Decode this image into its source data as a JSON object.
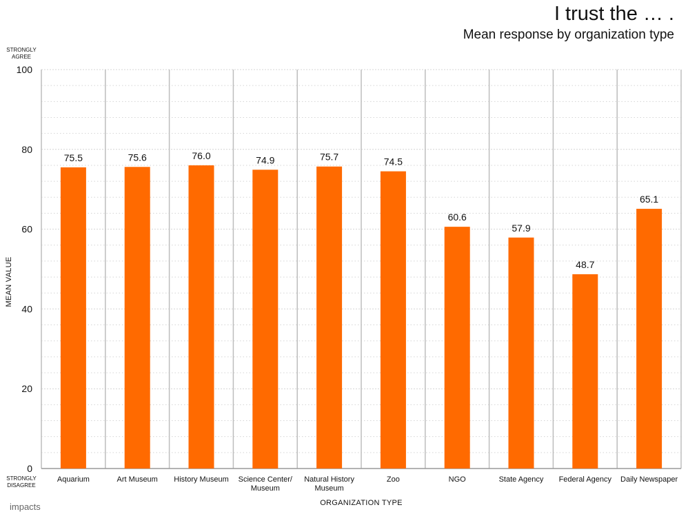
{
  "header": {
    "title": "I trust the … .",
    "subtitle": "Mean response by organization type"
  },
  "scale_anchors": {
    "top": "STRONGLY AGREE",
    "bottom": "STRONGLY DISAGREE"
  },
  "branding": {
    "logo_text": "impacts"
  },
  "colors": {
    "bar": "#FF6A00",
    "grid_major": "#bdbdbd",
    "grid_minor": "#d4d4d4"
  },
  "chart_data": {
    "type": "bar",
    "title": "I trust the … .",
    "subtitle": "Mean response by organization type",
    "xlabel": "ORGANIZATION TYPE",
    "ylabel": "MEAN VALUE",
    "ylim": [
      0,
      100
    ],
    "yticks": [
      0,
      20,
      40,
      60,
      80,
      100
    ],
    "grid": true,
    "categories": [
      "Aquarium",
      "Art Museum",
      "History Museum",
      "Science Center/ Museum",
      "Natural History Museum",
      "Zoo",
      "NGO",
      "State Agency",
      "Federal Agency",
      "Daily Newspaper"
    ],
    "category_lines": [
      [
        "Aquarium"
      ],
      [
        "Art Museum"
      ],
      [
        "History Museum"
      ],
      [
        "Science Center/",
        "Museum"
      ],
      [
        "Natural History",
        "Museum"
      ],
      [
        "Zoo"
      ],
      [
        "NGO"
      ],
      [
        "State Agency"
      ],
      [
        "Federal Agency"
      ],
      [
        "Daily Newspaper"
      ]
    ],
    "values": [
      75.5,
      75.6,
      76.0,
      74.9,
      75.7,
      74.5,
      60.6,
      57.9,
      48.7,
      65.1
    ],
    "data_labels": [
      "75.5",
      "75.6",
      "76.0",
      "74.9",
      "75.7",
      "74.5",
      "60.6",
      "57.9",
      "48.7",
      "65.1"
    ]
  }
}
